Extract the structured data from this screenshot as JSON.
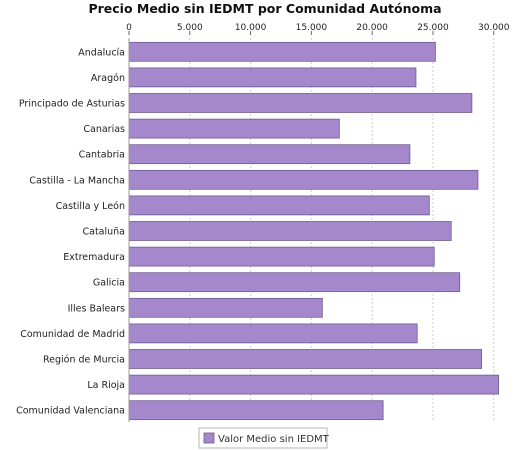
{
  "chart_data": {
    "type": "bar",
    "orientation": "horizontal",
    "title": "Precio Medio sin IEDMT por Comunidad Autónoma",
    "xlabel": "",
    "ylabel": "",
    "xlim": [
      0,
      31500
    ],
    "xticks": [
      0,
      5000,
      10000,
      15000,
      20000,
      25000,
      30000
    ],
    "xtick_labels": [
      "0",
      "5.000",
      "10.000",
      "15.000",
      "20.000",
      "25.000",
      "30.000"
    ],
    "grid": true,
    "categories": [
      "Andalucía",
      "Aragón",
      "Principado de Asturias",
      "Canarias",
      "Cantabria",
      "Castilla - La Mancha",
      "Castilla y León",
      "Cataluña",
      "Extremadura",
      "Galicia",
      "Illes Balears",
      "Comunidad de Madrid",
      "Región de Murcia",
      "La Rioja",
      "Comunidad Valenciana"
    ],
    "series": [
      {
        "name": "Valor Medio sin IEDMT",
        "values": [
          25200,
          23600,
          28200,
          17300,
          23100,
          28700,
          24700,
          26500,
          25100,
          27200,
          15900,
          23700,
          29000,
          30400,
          20900
        ]
      }
    ],
    "legend_position": "bottom",
    "bar_color": "#a588cc"
  }
}
